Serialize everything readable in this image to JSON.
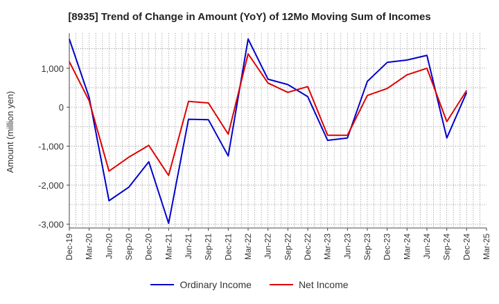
{
  "chart_data": {
    "type": "line",
    "title": "[8935]  Trend of Change in Amount (YoY) of 12Mo Moving Sum of Incomes",
    "ylabel": "Amount (million yen)",
    "xlabel": "",
    "ylim": [
      -3100,
      1900
    ],
    "yticks": [
      -3000,
      -2000,
      -1000,
      0,
      1000
    ],
    "ytick_labels": [
      "-3,000",
      "-2,000",
      "-1,000",
      "0",
      "1,000"
    ],
    "x_tick_labels": [
      "Dec-19",
      "Mar-20",
      "Jun-20",
      "Sep-20",
      "Dec-20",
      "Mar-21",
      "Jun-21",
      "Sep-21",
      "Dec-21",
      "Mar-22",
      "Jun-22",
      "Sep-22",
      "Dec-22",
      "Mar-23",
      "Jun-23",
      "Sep-23",
      "Dec-23",
      "Mar-24",
      "Jun-24",
      "Sep-24",
      "Dec-24",
      "Mar-25"
    ],
    "x": [
      "Dec-19",
      "Mar-20",
      "Jun-20",
      "Sep-20",
      "Dec-20",
      "Mar-21",
      "Jun-21",
      "Sep-21",
      "Dec-21",
      "Mar-22",
      "Jun-22",
      "Sep-22",
      "Dec-22",
      "Mar-23",
      "Jun-23",
      "Sep-23",
      "Dec-23",
      "Mar-24",
      "Jun-24",
      "Sep-24",
      "Dec-24"
    ],
    "grid": true,
    "legend_position": "bottom",
    "series": [
      {
        "name": "Ordinary Income",
        "color": "#0000cc",
        "values": [
          1750,
          250,
          -2400,
          -2050,
          -1400,
          -2980,
          -310,
          -320,
          -1250,
          1750,
          720,
          580,
          270,
          -850,
          -790,
          660,
          1150,
          1210,
          1330,
          -790,
          380
        ]
      },
      {
        "name": "Net Income",
        "color": "#dd0000",
        "values": [
          1170,
          160,
          -1640,
          -1280,
          -980,
          -1750,
          150,
          110,
          -690,
          1370,
          620,
          380,
          530,
          -720,
          -720,
          300,
          480,
          830,
          1000,
          -370,
          430
        ]
      }
    ]
  }
}
